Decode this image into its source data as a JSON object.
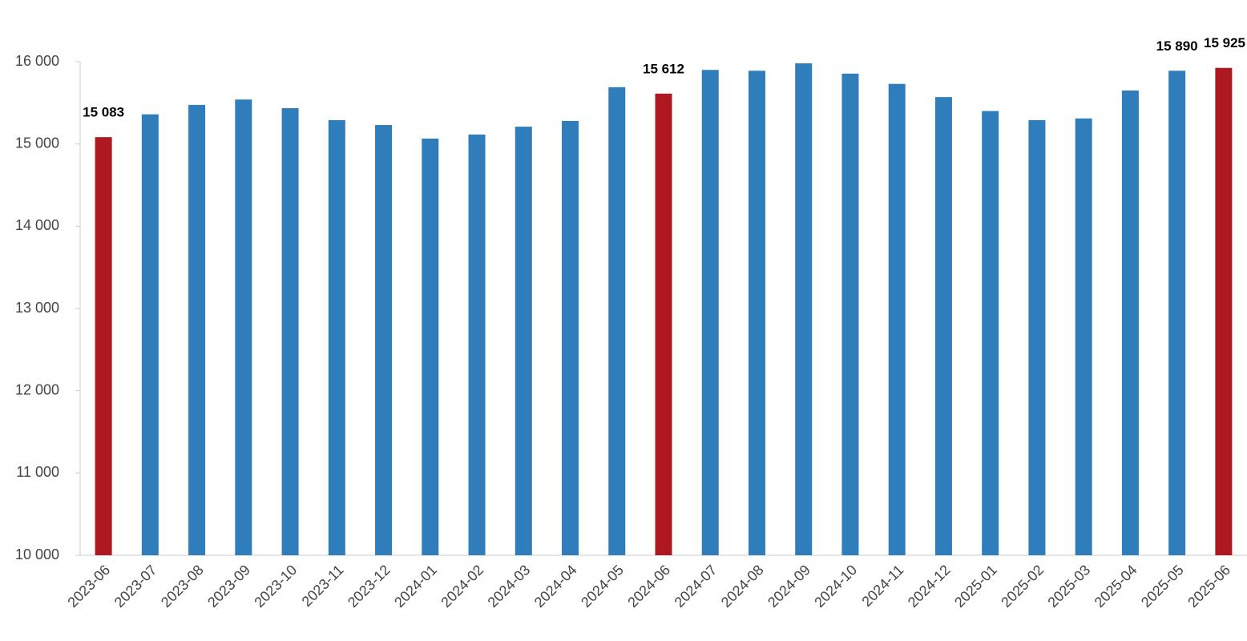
{
  "chart_data": {
    "type": "bar",
    "categories": [
      "2023-06",
      "2023-07",
      "2023-08",
      "2023-09",
      "2023-10",
      "2023-11",
      "2023-12",
      "2024-01",
      "2024-02",
      "2024-03",
      "2024-04",
      "2024-05",
      "2024-06",
      "2024-07",
      "2024-08",
      "2024-09",
      "2024-10",
      "2024-11",
      "2024-12",
      "2025-01",
      "2025-02",
      "2025-03",
      "2025-04",
      "2025-05",
      "2025-06"
    ],
    "values": [
      15083,
      15360,
      15475,
      15540,
      15435,
      15290,
      15230,
      15065,
      15115,
      15210,
      15280,
      15690,
      15612,
      15900,
      15890,
      15980,
      15855,
      15730,
      15570,
      15400,
      15290,
      15310,
      15650,
      15890,
      15925
    ],
    "value_labels": [
      "15 083",
      null,
      null,
      null,
      null,
      null,
      null,
      null,
      null,
      null,
      null,
      null,
      "15 612",
      null,
      null,
      null,
      null,
      null,
      null,
      null,
      null,
      null,
      null,
      "15 890",
      "15 925"
    ],
    "colors": [
      "#ae1820",
      "#2f7dba",
      "#2f7dba",
      "#2f7dba",
      "#2f7dba",
      "#2f7dba",
      "#2f7dba",
      "#2f7dba",
      "#2f7dba",
      "#2f7dba",
      "#2f7dba",
      "#2f7dba",
      "#ae1820",
      "#2f7dba",
      "#2f7dba",
      "#2f7dba",
      "#2f7dba",
      "#2f7dba",
      "#2f7dba",
      "#2f7dba",
      "#2f7dba",
      "#2f7dba",
      "#2f7dba",
      "#2f7dba",
      "#ae1820"
    ],
    "ylim": [
      10000,
      16000
    ],
    "yticks": [
      {
        "value": 10000,
        "label": "10 000"
      },
      {
        "value": 11000,
        "label": "11 000"
      },
      {
        "value": 12000,
        "label": "12 000"
      },
      {
        "value": 13000,
        "label": "13 000"
      },
      {
        "value": 14000,
        "label": "14 000"
      },
      {
        "value": 15000,
        "label": "15 000"
      },
      {
        "value": 16000,
        "label": "16 000"
      }
    ],
    "grid": false
  }
}
